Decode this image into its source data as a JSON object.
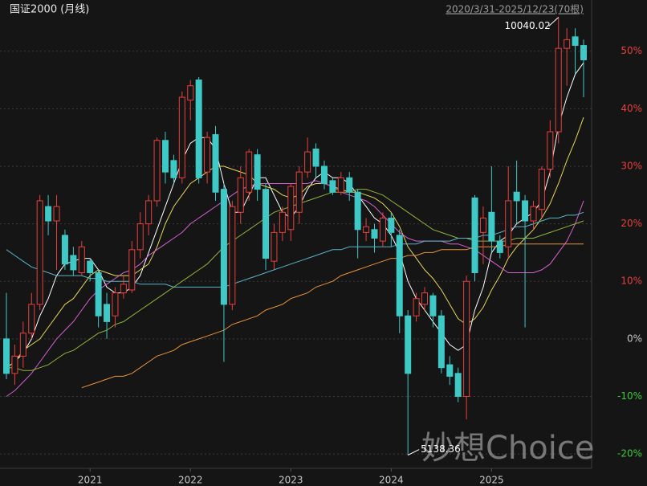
{
  "chart_data": {
    "type": "candlestick",
    "title": "国证2000 (月线)",
    "subtitle": "2020/3/31-2025/12/23(70根)",
    "watermark": "妙想Choice",
    "annotations": [
      {
        "text": "10040.02",
        "index": 66
      },
      {
        "text": "5138.36",
        "index": 48
      }
    ],
    "categories": [
      null,
      null,
      null,
      null,
      null,
      null,
      null,
      null,
      null,
      null,
      "2021",
      null,
      null,
      null,
      null,
      null,
      null,
      null,
      null,
      null,
      null,
      null,
      "2022",
      null,
      null,
      null,
      null,
      null,
      null,
      null,
      null,
      null,
      null,
      null,
      "2023",
      null,
      null,
      null,
      null,
      null,
      null,
      null,
      null,
      null,
      null,
      null,
      "2024",
      null,
      null,
      null,
      null,
      null,
      null,
      null,
      null,
      null,
      null,
      null,
      "2025",
      null,
      null,
      null,
      null,
      null,
      null,
      null,
      null,
      null,
      null,
      null
    ],
    "open": [
      0,
      -6,
      -3,
      1,
      6,
      23,
      20.5,
      18,
      14.5,
      11.5,
      13.5,
      11.5,
      6,
      4,
      8,
      8.5,
      15.5,
      20,
      24,
      34.5,
      31,
      28,
      41.5,
      45,
      29,
      35.5,
      26,
      6,
      22,
      25.5,
      32,
      26,
      13.5,
      18.5,
      19,
      22,
      29,
      33,
      30,
      27.5,
      25.5,
      28,
      25.5,
      18.5,
      19,
      17,
      21,
      18,
      4,
      4,
      6,
      7.5,
      4,
      -4.5,
      -6,
      -10,
      24.5,
      18.5,
      22,
      17,
      16,
      25.5,
      24,
      20.5,
      22.5,
      29.5,
      36,
      50.5,
      52.5,
      51
    ],
    "high": [
      8,
      -1,
      3,
      8,
      25,
      25,
      25,
      19,
      16,
      17,
      14,
      12,
      8,
      9,
      11,
      17,
      22,
      25,
      35,
      36,
      32,
      43,
      45,
      45.5,
      36,
      37,
      27,
      24,
      30,
      33,
      33,
      27,
      20,
      23,
      27,
      30,
      35,
      34,
      31,
      28,
      29,
      29,
      26,
      21,
      20,
      22,
      22,
      19,
      5,
      8,
      9,
      8,
      5,
      -3,
      -5,
      11,
      25,
      23,
      30,
      18,
      30,
      31,
      25,
      24,
      30,
      38,
      55.9,
      54,
      54,
      52
    ],
    "low": [
      -7,
      -8,
      -5,
      0,
      5,
      18,
      12,
      12,
      11,
      11,
      10,
      2,
      0,
      2,
      7,
      8,
      14,
      18,
      23,
      27,
      27,
      27,
      38,
      27,
      27,
      24,
      -4,
      5,
      20,
      24,
      24,
      12,
      12,
      17,
      17,
      20,
      28,
      28,
      26,
      25,
      25,
      24,
      14,
      17,
      15,
      16,
      16,
      1,
      -20.2,
      3,
      5,
      2,
      -6,
      -8,
      -11,
      -14,
      10,
      13,
      15,
      14,
      14,
      20,
      2,
      19,
      21,
      28,
      34,
      44,
      46,
      42
    ],
    "close": [
      -6,
      -3,
      1,
      6,
      24,
      20.5,
      23,
      13,
      12,
      16,
      11.5,
      4,
      3,
      8,
      9.5,
      15.5,
      20,
      24,
      34.5,
      29,
      28,
      42,
      44,
      28,
      35,
      25.5,
      6,
      23,
      28,
      32.5,
      26,
      14,
      18.5,
      22,
      26.5,
      29,
      32.5,
      30,
      27,
      25.5,
      28,
      25.5,
      19,
      19.5,
      17.5,
      21,
      18.5,
      4,
      -6,
      7,
      8,
      4,
      -5,
      -6.5,
      -10,
      10,
      11.5,
      21,
      17,
      15,
      24,
      24,
      20.5,
      23,
      29.5,
      36,
      50.5,
      52,
      51,
      48.5
    ],
    "up_color": "#e8403c",
    "down_color": "#3ec9c6",
    "series": [
      {
        "color": "#ffffff",
        "values": [
          -5,
          -4,
          -2.5,
          0,
          4,
          7,
          11,
          13,
          13.5,
          14,
          14,
          12,
          9,
          8,
          8,
          9,
          11,
          15,
          19,
          23,
          27,
          31,
          34,
          35,
          35,
          33,
          27,
          22,
          22,
          25,
          28,
          28,
          25,
          22,
          21,
          23,
          26,
          28,
          29,
          28,
          28,
          27,
          25,
          23,
          21,
          20,
          18,
          15,
          10,
          7,
          5,
          3,
          1,
          -1,
          -2,
          -1,
          5,
          9,
          15,
          17,
          18,
          20,
          21,
          22,
          24,
          29,
          37,
          42,
          46,
          48
        ]
      },
      {
        "color": "#e6d55a",
        "values": [
          -5,
          -4,
          -2,
          -1,
          0,
          2,
          4,
          6,
          7,
          9,
          11,
          12,
          11.5,
          11,
          11,
          11,
          12,
          13,
          16,
          20,
          23,
          25,
          27,
          28,
          29,
          30,
          30,
          29.5,
          29,
          28.5,
          27,
          26.5,
          26,
          25,
          24.5,
          25,
          26.5,
          27,
          27,
          26.5,
          26,
          25.5,
          25.5,
          25,
          24.5,
          23.5,
          22,
          19.5,
          16,
          14,
          12,
          10.5,
          8.5,
          6,
          3.5,
          2.5,
          3.5,
          5.5,
          8.5,
          11,
          14,
          16,
          17.5,
          19,
          21,
          23.5,
          27,
          31,
          34.5,
          38.5
        ]
      },
      {
        "color": "#d460d0",
        "values": [
          -10,
          -9,
          -7.5,
          -6,
          -4,
          -2,
          0,
          1.5,
          3,
          5,
          7,
          8.5,
          9.5,
          10.5,
          11.5,
          12,
          13,
          14.5,
          15.5,
          16.5,
          17.5,
          18.5,
          20,
          21,
          22,
          23,
          24,
          25,
          26,
          26.5,
          27,
          27,
          27,
          27,
          27,
          27,
          27,
          27.5,
          27,
          26.5,
          25.5,
          25,
          24.5,
          24,
          23,
          21.5,
          20,
          18.5,
          17.5,
          17,
          17,
          17,
          17,
          16.5,
          16.5,
          16,
          15.5,
          14.5,
          13.5,
          12.5,
          11.5,
          11.5,
          11.5,
          11.5,
          12,
          13,
          15,
          17,
          20,
          24
        ]
      },
      {
        "color": "#8fb43c",
        "values": [
          -5,
          -5,
          -5.5,
          -5.5,
          -5,
          -4.5,
          -3.5,
          -2.5,
          -2,
          -1,
          0,
          1,
          1.5,
          2.5,
          3,
          4,
          5,
          6,
          7,
          8,
          9,
          10,
          11,
          12,
          13,
          14.5,
          16,
          17,
          18,
          19,
          20,
          21,
          22,
          22.5,
          23,
          23.5,
          24,
          24.5,
          25,
          25.5,
          25.5,
          25.5,
          26,
          26,
          25.5,
          25,
          24,
          23,
          22,
          21,
          20,
          19,
          18.5,
          18,
          17.5,
          17.5,
          17,
          17,
          17,
          17,
          17,
          17.5,
          17.5,
          17.5,
          18,
          18.5,
          19,
          19.5,
          20,
          20.5
        ]
      },
      {
        "color": "#5ab4c8",
        "values": [
          15.5,
          14.5,
          13.5,
          12.5,
          12,
          11.5,
          11,
          11,
          11,
          11,
          10.5,
          10.5,
          10,
          10,
          10,
          10,
          9.5,
          9.5,
          9.5,
          9.5,
          9,
          9,
          9,
          9,
          9,
          9,
          9,
          9.5,
          10,
          10.5,
          11,
          11.5,
          12,
          12.5,
          13,
          13.5,
          14,
          14.5,
          15,
          15.5,
          15.5,
          16,
          16,
          16,
          16,
          16,
          16,
          16.5,
          16.5,
          16.5,
          17,
          17,
          17,
          17,
          17.5,
          17.5,
          17.5,
          18,
          18,
          18.5,
          19,
          19.5,
          19.5,
          20,
          20.5,
          21,
          21,
          21.5,
          21.5,
          22
        ]
      },
      {
        "color": "#e8923c",
        "values": [
          null,
          null,
          null,
          null,
          null,
          null,
          null,
          null,
          null,
          -8.5,
          -8,
          -7.5,
          -7,
          -6.5,
          -6.5,
          -6,
          -5,
          -4,
          -3,
          -2.5,
          -2,
          -1,
          -0.5,
          0,
          0.5,
          1,
          1.5,
          2.5,
          3,
          3.5,
          4,
          5,
          5.5,
          6,
          7,
          7.5,
          8,
          9,
          9.5,
          10,
          11,
          11.5,
          12,
          12.5,
          13,
          13.5,
          14,
          14,
          14.5,
          14.5,
          15,
          15,
          15.5,
          15.5,
          15.5,
          15.5,
          16,
          16,
          16,
          16,
          16.5,
          16.5,
          16.5,
          16.5,
          16.5,
          16.5,
          16.5,
          16.5,
          16.5,
          16.5
        ]
      }
    ],
    "ylim": [
      -22.5,
      58.9
    ],
    "yticks": [
      {
        "value": 50,
        "label": "50%"
      },
      {
        "value": 40,
        "label": "40%"
      },
      {
        "value": 30,
        "label": "30%"
      },
      {
        "value": 20,
        "label": "20%"
      },
      {
        "value": 10,
        "label": "10%"
      },
      {
        "value": 0,
        "label": "0%"
      },
      {
        "value": -10,
        "label": "-10%"
      },
      {
        "value": -20,
        "label": "-20%"
      }
    ],
    "ytick_colors": {
      "positive": "#e8403c",
      "zero": "#c8c8c8",
      "negative": "#3ec93e"
    },
    "grid": true
  }
}
